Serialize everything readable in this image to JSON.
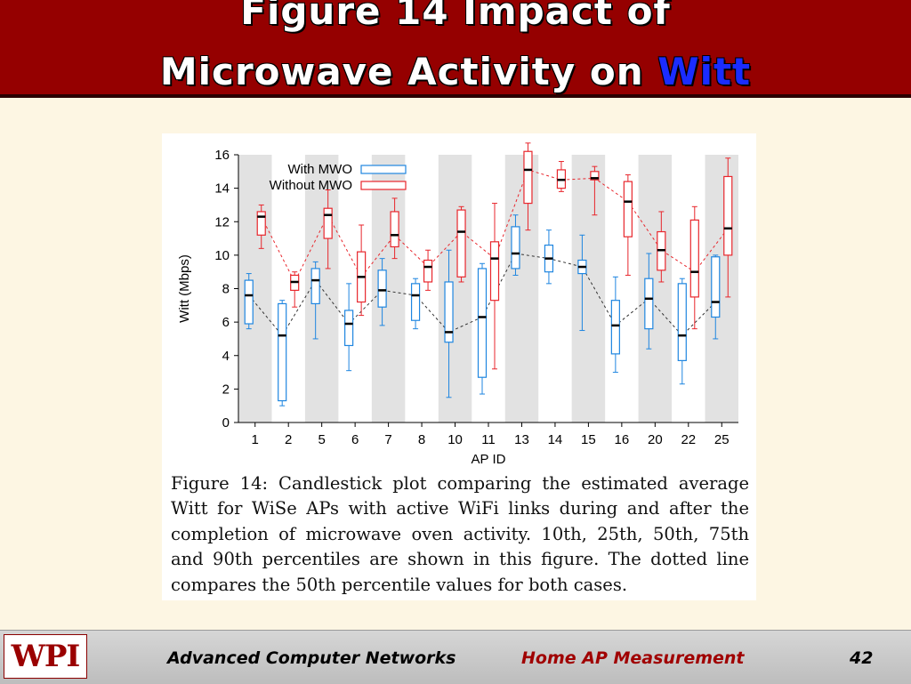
{
  "slide": {
    "title_line1": "Figure 14 Impact of",
    "title_line2_prefix": "Microwave Activity on ",
    "title_line2_accent": "Witt"
  },
  "figure": {
    "caption_lines": [
      "Figure 14:  Candlestick plot comparing the estimated average",
      "Witt for WiSe APs with active WiFi links during and after the",
      "completion of microwave oven activity.  10th, 25th, 50th, 75th",
      "and 90th percentiles are shown in this figure.  The dotted line",
      "compares the 50th percentile values for both cases."
    ]
  },
  "footer": {
    "logo_text": "WPI",
    "course": "Advanced Computer Networks",
    "topic": "Home AP Measurement",
    "page_number": "42"
  },
  "colors": {
    "with_mwo": "#1f86e0",
    "without_mwo": "#e8262c",
    "band": "#e2e2e2",
    "title_bar": "#950000",
    "title_accent": "#1b2cff"
  },
  "chart_data": {
    "type": "candlestick",
    "xlabel": "AP ID",
    "ylabel": "Witt (Mbps)",
    "ylim": [
      0,
      16
    ],
    "yticks": [
      0,
      2,
      4,
      6,
      8,
      10,
      12,
      14,
      16
    ],
    "categories": [
      "1",
      "2",
      "5",
      "6",
      "7",
      "8",
      "10",
      "11",
      "13",
      "14",
      "15",
      "16",
      "20",
      "22",
      "25"
    ],
    "legend_position": "top-left",
    "series": [
      {
        "name": "With MWO",
        "color": "#1f86e0",
        "p10": [
          5.6,
          1.0,
          5.0,
          3.1,
          5.8,
          5.6,
          1.5,
          1.7,
          8.8,
          8.3,
          5.5,
          3.0,
          4.4,
          2.3,
          5.0
        ],
        "p25": [
          5.9,
          1.3,
          7.1,
          4.6,
          6.9,
          6.1,
          4.8,
          2.7,
          9.2,
          9.0,
          8.9,
          4.1,
          5.6,
          3.7,
          6.3
        ],
        "p50": [
          7.6,
          5.2,
          8.5,
          5.9,
          7.9,
          7.6,
          5.4,
          6.3,
          10.1,
          9.8,
          9.3,
          5.8,
          7.4,
          5.2,
          7.2
        ],
        "p75": [
          8.5,
          7.1,
          9.2,
          6.7,
          9.1,
          8.3,
          8.4,
          9.2,
          11.7,
          10.6,
          9.7,
          7.3,
          8.6,
          8.3,
          9.9
        ],
        "p90": [
          8.9,
          7.3,
          9.6,
          8.3,
          9.8,
          8.6,
          10.3,
          9.5,
          12.4,
          11.5,
          11.2,
          8.7,
          10.1,
          8.6,
          10.0
        ]
      },
      {
        "name": "Without MWO",
        "color": "#e8262c",
        "p10": [
          10.4,
          6.9,
          9.2,
          6.4,
          9.8,
          7.9,
          8.4,
          3.2,
          11.5,
          13.8,
          12.4,
          8.8,
          8.4,
          5.6,
          7.5
        ],
        "p25": [
          11.2,
          7.9,
          11.0,
          7.2,
          10.5,
          8.4,
          8.7,
          7.3,
          13.1,
          14.0,
          14.5,
          11.1,
          9.1,
          7.5,
          10.0
        ],
        "p50": [
          12.3,
          8.4,
          12.4,
          8.7,
          11.2,
          9.3,
          11.4,
          9.8,
          15.1,
          14.5,
          14.6,
          13.2,
          10.3,
          9.0,
          11.6
        ],
        "p75": [
          12.6,
          8.8,
          12.8,
          10.2,
          12.6,
          9.7,
          12.7,
          10.8,
          16.2,
          15.1,
          15.0,
          14.4,
          11.4,
          12.1,
          14.7
        ],
        "p90": [
          13.0,
          9.0,
          13.9,
          11.8,
          13.4,
          10.3,
          12.9,
          13.1,
          16.7,
          15.6,
          15.3,
          14.8,
          12.6,
          12.9,
          15.8
        ]
      }
    ]
  }
}
